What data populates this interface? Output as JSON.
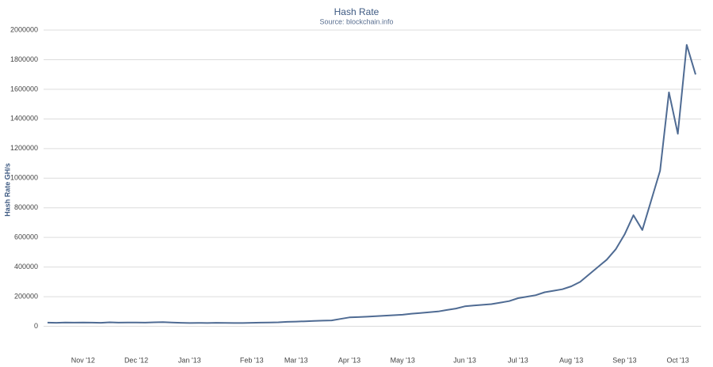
{
  "chart_data": {
    "type": "line",
    "title": "Hash Rate",
    "subtitle": "Source: blockchain.info",
    "y_label": "Hash Rate GH/s",
    "categories": [
      null,
      null,
      null,
      null,
      "Nov '12",
      null,
      null,
      null,
      null,
      null,
      "Dec '12",
      null,
      null,
      null,
      null,
      null,
      "Jan '13",
      null,
      null,
      null,
      null,
      null,
      null,
      "Feb '13",
      null,
      null,
      null,
      null,
      "Mar '13",
      null,
      null,
      null,
      null,
      null,
      "Apr '13",
      null,
      null,
      null,
      null,
      null,
      "May '13",
      null,
      null,
      null,
      null,
      null,
      null,
      "Jun '13",
      null,
      null,
      null,
      null,
      null,
      "Jul '13",
      null,
      null,
      null,
      null,
      null,
      "Aug '13",
      null,
      null,
      null,
      null,
      null,
      "Sep '13",
      null,
      null,
      null,
      null,
      null,
      "Oct '13",
      null,
      null
    ],
    "series": [
      {
        "name": "Hash Rate",
        "color": "#4f6b93",
        "values": [
          25000,
          24000,
          26000,
          25000,
          26000,
          25000,
          24000,
          27000,
          25000,
          26000,
          26000,
          25000,
          27000,
          28000,
          26000,
          24000,
          22000,
          23000,
          22000,
          24000,
          23000,
          22000,
          22000,
          24000,
          25000,
          26000,
          27000,
          30000,
          32000,
          34000,
          36000,
          38000,
          40000,
          50000,
          60000,
          62000,
          65000,
          68000,
          72000,
          75000,
          78000,
          85000,
          90000,
          95000,
          100000,
          110000,
          120000,
          135000,
          140000,
          145000,
          150000,
          160000,
          170000,
          190000,
          200000,
          210000,
          230000,
          240000,
          250000,
          270000,
          300000,
          350000,
          400000,
          450000,
          520000,
          620000,
          750000,
          650000,
          850000,
          1050000,
          1580000,
          1300000,
          1900000,
          1700000
        ]
      }
    ],
    "ylim": [
      -200000,
      2000000
    ],
    "yticks": [
      0,
      200000,
      400000,
      600000,
      800000,
      1000000,
      1200000,
      1400000,
      1600000,
      1800000,
      2000000
    ],
    "grid": true
  }
}
